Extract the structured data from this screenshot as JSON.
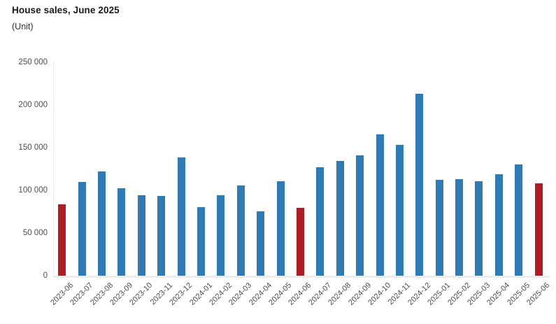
{
  "header": {
    "title": "House sales, June 2025",
    "subtitle": "(Unit)"
  },
  "chart_data": {
    "type": "bar",
    "title": "House sales, June 2025",
    "unit_label": "(Unit)",
    "xlabel": "",
    "ylabel": "Unit",
    "categories": [
      "2023-06",
      "2023-07",
      "2023-08",
      "2023-09",
      "2023-10",
      "2023-11",
      "2023-12",
      "2024-01",
      "2024-02",
      "2024-03",
      "2024-04",
      "2024-05",
      "2024-06",
      "2024-07",
      "2024-08",
      "2024-09",
      "2024-10",
      "2024-11",
      "2024-12",
      "2025-01",
      "2025-02",
      "2025-03",
      "2025-04",
      "2025-05",
      "2025-06"
    ],
    "values": [
      83636,
      109548,
      122091,
      102656,
      93761,
      93514,
      138577,
      80308,
      93902,
      105394,
      75569,
      110588,
      79313,
      127088,
      134155,
      140919,
      165138,
      153014,
      212637,
      112173,
      112818,
      110795,
      118359,
      130025,
      107723
    ],
    "highlight_categories": [
      "2023-06",
      "2024-06",
      "2025-06"
    ],
    "ylim": [
      0,
      250000
    ],
    "yticks": [
      0,
      50000,
      100000,
      150000,
      200000,
      250000
    ],
    "ytick_labels": [
      "0",
      "50 000",
      "100 000",
      "150 000",
      "200 000",
      "250 000"
    ],
    "grid": false,
    "legend": false,
    "bar_color": "#2F7BB8",
    "highlight_color": "#B11B22",
    "axis_line_color": "#ececec",
    "tick_label_color": "#4d4d4d"
  }
}
